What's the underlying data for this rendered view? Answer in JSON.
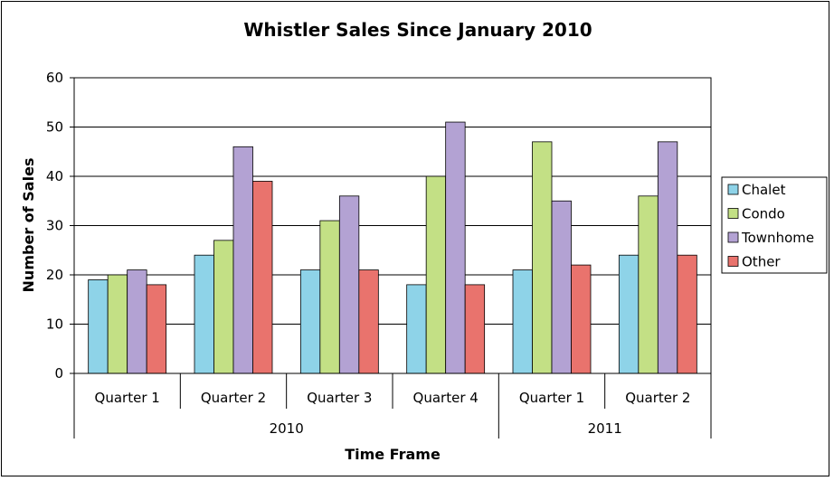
{
  "chart_data": {
    "type": "bar",
    "title": "Whistler Sales Since January 2010",
    "xlabel": "Time Frame",
    "ylabel": "Number of Sales",
    "ylim": [
      0,
      60
    ],
    "yticks": [
      "0",
      "10",
      "20",
      "30",
      "40",
      "50",
      "60"
    ],
    "grid": true,
    "legend_position": "right",
    "categories": [
      "Quarter 1",
      "Quarter 2",
      "Quarter 3",
      "Quarter 4",
      "Quarter 1",
      "Quarter 2"
    ],
    "groups": [
      {
        "label": "2010",
        "count": 4
      },
      {
        "label": "2011",
        "count": 2
      }
    ],
    "series": [
      {
        "name": "Chalet",
        "color": "#8ed3e8",
        "values": [
          19,
          24,
          21,
          18,
          21,
          24
        ]
      },
      {
        "name": "Condo",
        "color": "#c3e085",
        "values": [
          20,
          27,
          31,
          40,
          47,
          36
        ]
      },
      {
        "name": "Townhome",
        "color": "#b3a2d3",
        "values": [
          21,
          46,
          36,
          51,
          35,
          47
        ]
      },
      {
        "name": "Other",
        "color": "#e9736d",
        "values": [
          18,
          39,
          21,
          18,
          22,
          24
        ]
      }
    ]
  }
}
